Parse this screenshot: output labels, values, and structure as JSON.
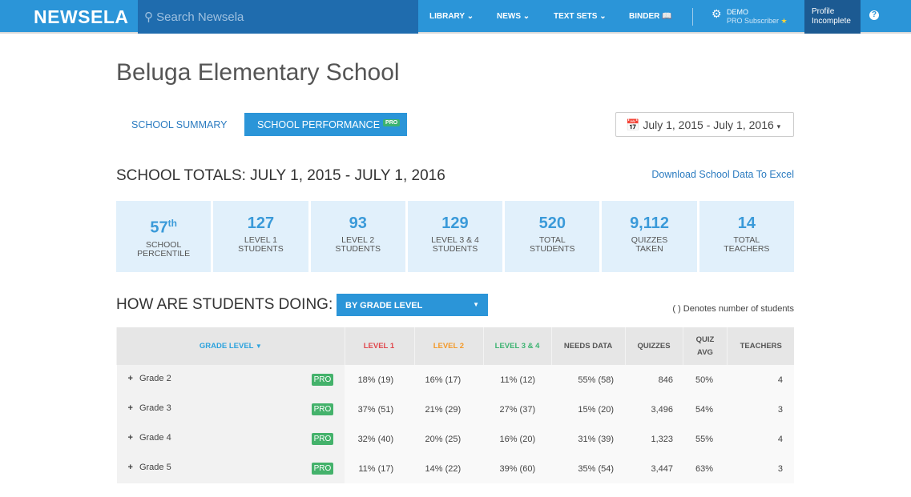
{
  "header": {
    "logo": "NEWSELA",
    "search_placeholder": "Search Newsela",
    "nav": [
      "LIBRARY",
      "NEWS",
      "TEXT SETS",
      "BINDER"
    ],
    "user": "DEMO",
    "subscription": "PRO Subscriber",
    "profile": [
      "Profile",
      "Incomplete"
    ],
    "help": "?"
  },
  "page": {
    "title": "Beluga Elementary School",
    "tabs": [
      "SCHOOL SUMMARY",
      "SCHOOL PERFORMANCE"
    ],
    "pro": "PRO",
    "date_range": "July 1, 2015 - July 1, 2016",
    "totals_title": "SCHOOL TOTALS: JULY 1, 2015 - JULY 1, 2016",
    "download": "Download School Data To Excel",
    "stats": [
      {
        "v": "57",
        "sup": "th",
        "l1": "SCHOOL",
        "l2": "PERCENTILE"
      },
      {
        "v": "127",
        "l1": "LEVEL 1",
        "l2": "STUDENTS"
      },
      {
        "v": "93",
        "l1": "LEVEL 2",
        "l2": "STUDENTS"
      },
      {
        "v": "129",
        "l1": "LEVEL 3 & 4",
        "l2": "STUDENTS"
      },
      {
        "v": "520",
        "l1": "TOTAL",
        "l2": "STUDENTS"
      },
      {
        "v": "9,112",
        "l1": "QUIZZES",
        "l2": "TAKEN"
      },
      {
        "v": "14",
        "l1": "TOTAL",
        "l2": "TEACHERS"
      }
    ],
    "how_title": "HOW ARE STUDENTS DOING:",
    "group_by": "BY GRADE LEVEL",
    "denotes": "( ) Denotes number of students"
  },
  "table": {
    "headers": [
      "GRADE LEVEL",
      "LEVEL 1",
      "LEVEL 2",
      "LEVEL 3 & 4",
      "NEEDS DATA",
      "QUIZZES",
      "QUIZ AVG",
      "TEACHERS"
    ],
    "colors": {
      "level1": "#e0474c",
      "level2": "#f39a2b",
      "level34": "#3cb371",
      "grade": "#2ea3dd"
    },
    "rows": [
      [
        "Grade 2",
        "18% (19)",
        "16% (17)",
        "11% (12)",
        "55% (58)",
        "846",
        "50%",
        "4"
      ],
      [
        "Grade 3",
        "37% (51)",
        "21% (29)",
        "27% (37)",
        "15% (20)",
        "3,496",
        "54%",
        "3"
      ],
      [
        "Grade 4",
        "32% (40)",
        "20% (25)",
        "16% (20)",
        "31% (39)",
        "1,323",
        "55%",
        "4"
      ],
      [
        "Grade 5",
        "11% (17)",
        "14% (22)",
        "39% (60)",
        "35% (54)",
        "3,447",
        "63%",
        "3"
      ]
    ]
  }
}
